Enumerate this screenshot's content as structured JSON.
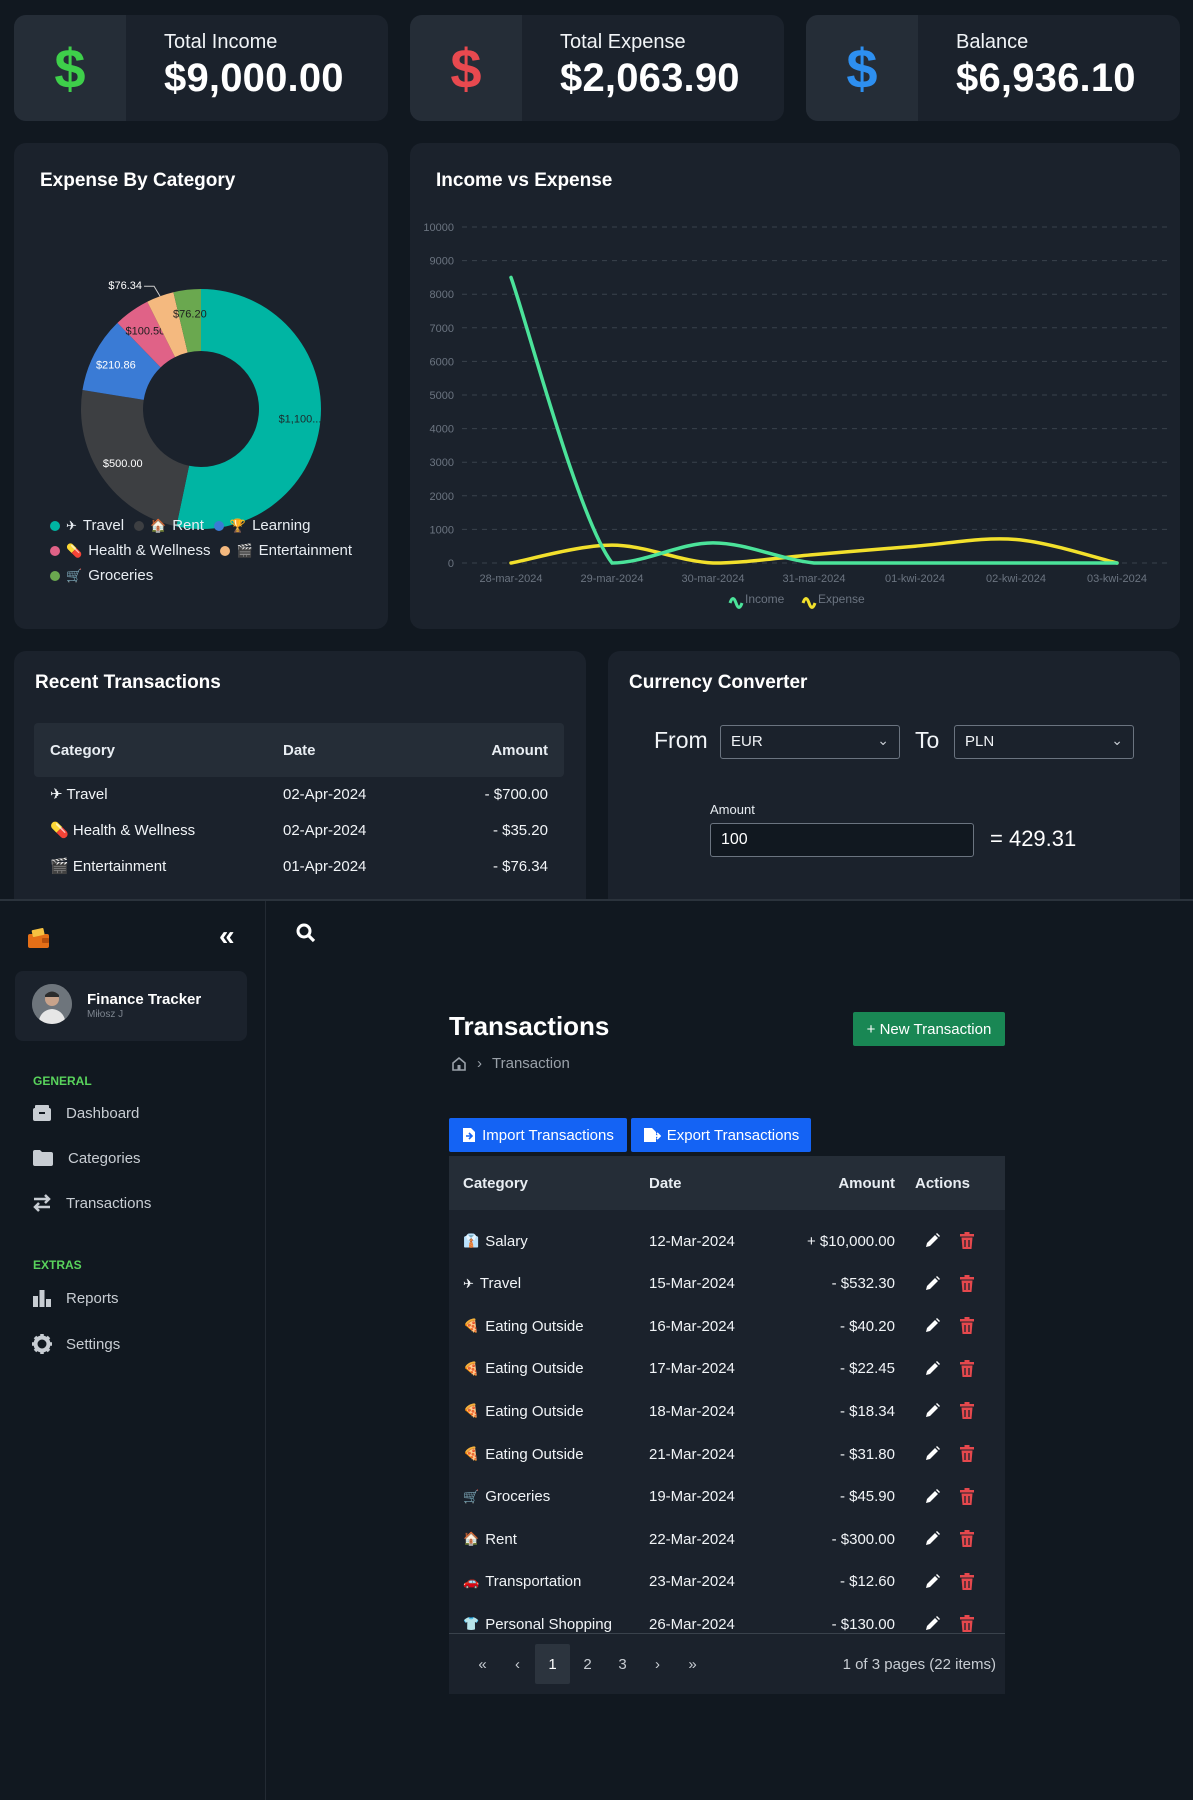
{
  "stats": {
    "income": {
      "label": "Total Income",
      "value": "$9,000.00",
      "color": "#3ecf4a"
    },
    "expense": {
      "label": "Total Expense",
      "value": "$2,063.90",
      "color": "#e8494f"
    },
    "balance": {
      "label": "Balance",
      "value": "$6,936.10",
      "color": "#2d8ff0"
    },
    "icon": "$"
  },
  "expense_by_category": {
    "title": "Expense By Category",
    "legend": [
      {
        "icon": "✈",
        "label": "Travel",
        "color": "#00b5a3"
      },
      {
        "icon": "🏠",
        "label": "Rent",
        "color": "#3d3f42"
      },
      {
        "icon": "🏆",
        "label": "Learning",
        "color": "#3a7bd5"
      },
      {
        "icon": "💊",
        "label": "Health & Wellness",
        "color": "#e06287"
      },
      {
        "icon": "🎬",
        "label": "Entertainment",
        "color": "#f4b97f"
      },
      {
        "icon": "🛒",
        "label": "Groceries",
        "color": "#6aa84f"
      }
    ]
  },
  "income_vs_expense": {
    "title": "Income vs Expense"
  },
  "chart_data": [
    {
      "type": "pie",
      "title": "Expense By Category",
      "categories": [
        "Travel",
        "Rent",
        "Learning",
        "Health & Wellness",
        "Entertainment",
        "Groceries"
      ],
      "values": [
        1100,
        500,
        210.86,
        100.5,
        76.34,
        76.2
      ],
      "data_labels": [
        "$1,100....",
        "$500.00",
        "$210.86",
        "$100.50",
        "$76.34",
        "$76.20"
      ],
      "colors": [
        "#00b5a3",
        "#3d3f42",
        "#3a7bd5",
        "#e06287",
        "#f4b97f",
        "#6aa84f"
      ],
      "donut": true,
      "legend": "bottom"
    },
    {
      "type": "line",
      "title": "Income vs Expense",
      "categories": [
        "28-mar-2024",
        "29-mar-2024",
        "30-mar-2024",
        "31-mar-2024",
        "01-kwi-2024",
        "02-kwi-2024",
        "03-kwi-2024"
      ],
      "series": [
        {
          "name": "Income",
          "values": [
            8500,
            0,
            600,
            0,
            0,
            0,
            0
          ],
          "color": "#4be39a"
        },
        {
          "name": "Expense",
          "values": [
            0,
            532,
            0,
            250,
            500,
            700,
            0
          ],
          "color": "#f2e02c"
        }
      ],
      "ylim": [
        0,
        10000
      ],
      "yticks": [
        "0",
        "1000",
        "2000",
        "3000",
        "4000",
        "5000",
        "6000",
        "7000",
        "8000",
        "9000",
        "10000"
      ],
      "grid": true,
      "legend": "bottom"
    }
  ],
  "recent_transactions": {
    "title": "Recent Transactions",
    "headers": [
      "Category",
      "Date",
      "Amount"
    ],
    "rows": [
      {
        "icon": "✈",
        "category": "Travel",
        "date": "02-Apr-2024",
        "amount": "- $700.00"
      },
      {
        "icon": "💊",
        "category": "Health & Wellness",
        "date": "02-Apr-2024",
        "amount": "- $35.20"
      },
      {
        "icon": "🎬",
        "category": "Entertainment",
        "date": "01-Apr-2024",
        "amount": "- $76.34"
      }
    ]
  },
  "currency_converter": {
    "title": "Currency Converter",
    "from_label": "From",
    "from_value": "EUR",
    "to_label": "To",
    "to_value": "PLN",
    "amount_label": "Amount",
    "amount_value": "100",
    "result": "= 429.31"
  },
  "sidebar": {
    "app_name": "Finance Tracker",
    "user_name": "Miłosz J",
    "collapse_icon": "«",
    "sections": [
      {
        "title": "GENERAL",
        "items": [
          "Dashboard",
          "Categories",
          "Transactions"
        ]
      },
      {
        "title": "EXTRAS",
        "items": [
          "Reports",
          "Settings"
        ]
      }
    ]
  },
  "transactions_page": {
    "title": "Transactions",
    "new_button": "+ New Transaction",
    "breadcrumb": "Transaction",
    "import_button": "Import Transactions",
    "export_button": "Export Transactions",
    "headers": [
      "Category",
      "Date",
      "Amount",
      "Actions"
    ],
    "rows": [
      {
        "icon": "👔",
        "category": "Salary",
        "date": "12-Mar-2024",
        "amount": "+ $10,000.00"
      },
      {
        "icon": "✈",
        "category": "Travel",
        "date": "15-Mar-2024",
        "amount": "- $532.30"
      },
      {
        "icon": "🍕",
        "category": "Eating Outside",
        "date": "16-Mar-2024",
        "amount": "- $40.20"
      },
      {
        "icon": "🍕",
        "category": "Eating Outside",
        "date": "17-Mar-2024",
        "amount": "- $22.45"
      },
      {
        "icon": "🍕",
        "category": "Eating Outside",
        "date": "18-Mar-2024",
        "amount": "- $18.34"
      },
      {
        "icon": "🍕",
        "category": "Eating Outside",
        "date": "21-Mar-2024",
        "amount": "- $31.80"
      },
      {
        "icon": "🛒",
        "category": "Groceries",
        "date": "19-Mar-2024",
        "amount": "- $45.90"
      },
      {
        "icon": "🏠",
        "category": "Rent",
        "date": "22-Mar-2024",
        "amount": "- $300.00"
      },
      {
        "icon": "🚗",
        "category": "Transportation",
        "date": "23-Mar-2024",
        "amount": "- $12.60"
      },
      {
        "icon": "👕",
        "category": "Personal Shopping",
        "date": "26-Mar-2024",
        "amount": "- $130.00"
      }
    ],
    "pagination": {
      "first": "«",
      "prev": "‹",
      "pages": [
        "1",
        "2",
        "3"
      ],
      "current": "1",
      "next": "›",
      "last": "»",
      "summary": "1 of 3 pages (22 items)"
    }
  }
}
